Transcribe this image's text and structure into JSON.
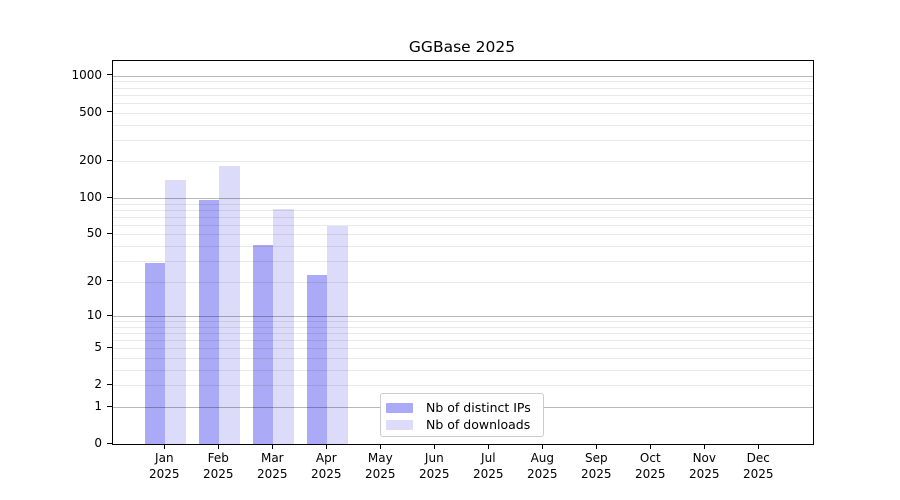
{
  "chart_data": {
    "type": "bar",
    "title": "GGBase 2025",
    "scale": "symlog (log1p)",
    "year_label": "2025",
    "months": [
      "Jan",
      "Feb",
      "Mar",
      "Apr",
      "May",
      "Jun",
      "Jul",
      "Aug",
      "Sep",
      "Oct",
      "Nov",
      "Dec"
    ],
    "categories": [
      "Jan 2025",
      "Feb 2025",
      "Mar 2025",
      "Apr 2025",
      "May 2025",
      "Jun 2025",
      "Jul 2025",
      "Aug 2025",
      "Sep 2025",
      "Oct 2025",
      "Nov 2025",
      "Dec 2025"
    ],
    "series": [
      {
        "name": "Nb of distinct IPs",
        "color": "#aaaaf7",
        "values": [
          29,
          97,
          41,
          23,
          null,
          null,
          null,
          null,
          null,
          null,
          null,
          null
        ]
      },
      {
        "name": "Nb of downloads",
        "color": "#dcdcfa",
        "values": [
          140,
          183,
          81,
          59,
          null,
          null,
          null,
          null,
          null,
          null,
          null,
          null
        ]
      }
    ],
    "y_ticks": [
      0,
      1,
      2,
      5,
      10,
      20,
      50,
      100,
      200,
      500,
      1000
    ],
    "major_grid_values": [
      1,
      10,
      100,
      1000
    ],
    "ylim": [
      0,
      1320
    ],
    "xlabel": "",
    "ylabel": "",
    "grid": true,
    "legend_position": "lower center"
  },
  "style_colors": {
    "background": "#ffffff",
    "axis_frame": "#000000",
    "major_grid": "rgba(0,0,0,0.28)",
    "minor_grid": "rgba(0,0,0,0.085)",
    "text": "#000000"
  }
}
